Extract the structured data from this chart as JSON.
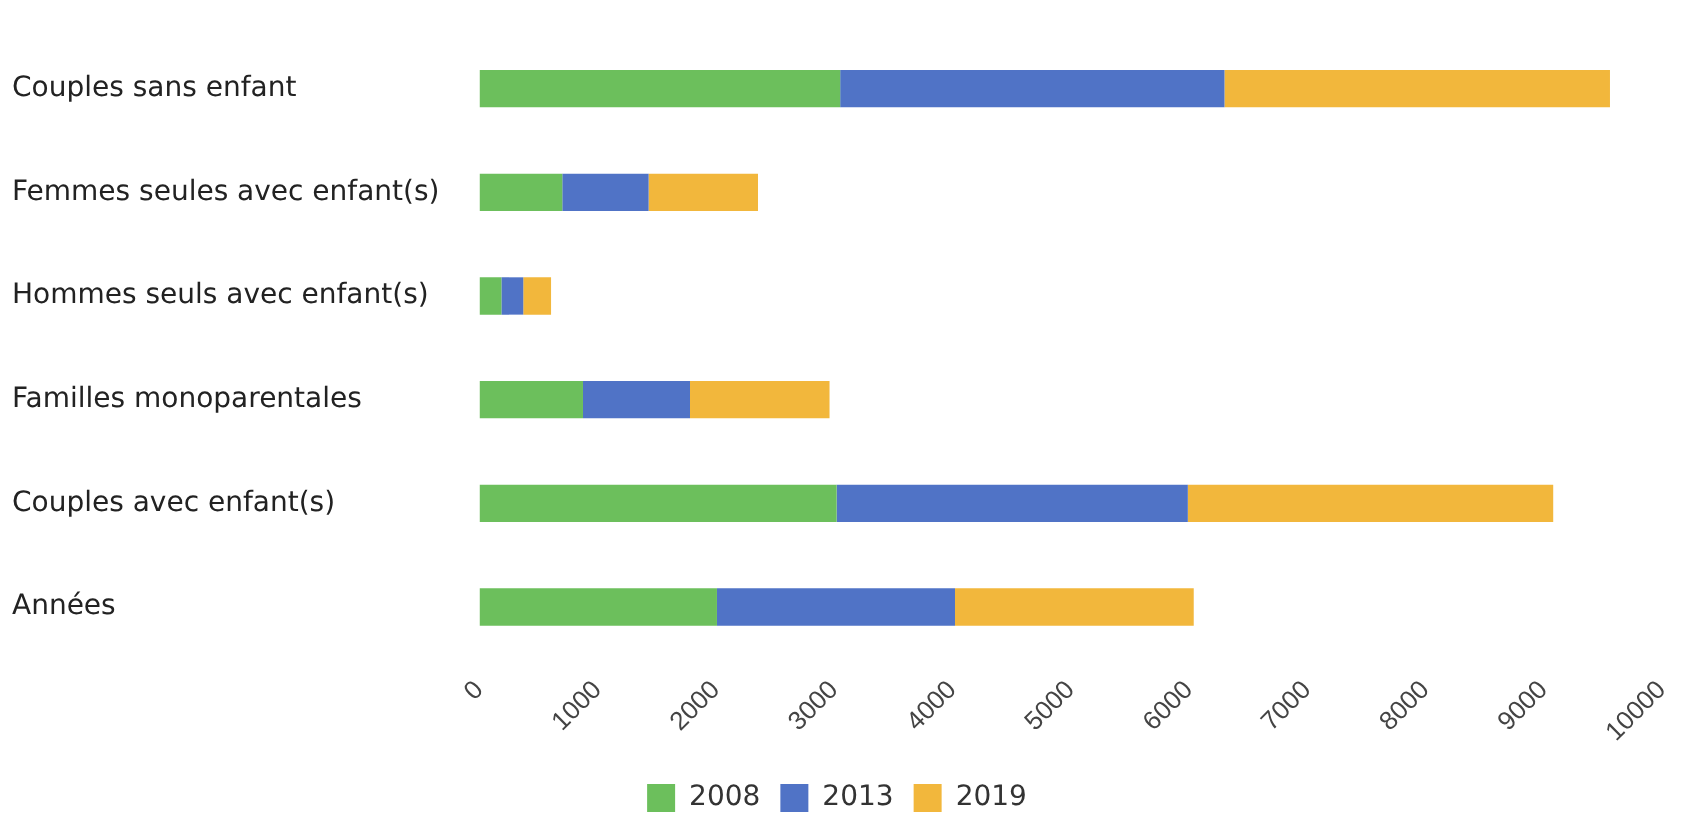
{
  "chart_data": {
    "type": "bar",
    "orientation": "horizontal",
    "stacked": true,
    "categories": [
      "Couples sans enfant",
      "Femmes seules avec enfant(s)",
      "Hommes seuls avec enfant(s)",
      "Familles monoparentales",
      "Couples avec enfant(s)",
      "Années"
    ],
    "series": [
      {
        "name": "2008",
        "color": "#6cbf5c",
        "values": [
          3050,
          700,
          185,
          875,
          3020,
          2008
        ]
      },
      {
        "name": "2013",
        "color": "#5073c6",
        "values": [
          3250,
          730,
          185,
          905,
          2970,
          2013
        ]
      },
      {
        "name": "2019",
        "color": "#f2b73c",
        "values": [
          3260,
          925,
          235,
          1180,
          3090,
          2019
        ]
      }
    ],
    "xlim": [
      0,
      10000
    ],
    "xticks": [
      0,
      1000,
      2000,
      3000,
      4000,
      5000,
      6000,
      7000,
      8000,
      9000,
      10000
    ],
    "grid": false,
    "legend": "bottom"
  }
}
